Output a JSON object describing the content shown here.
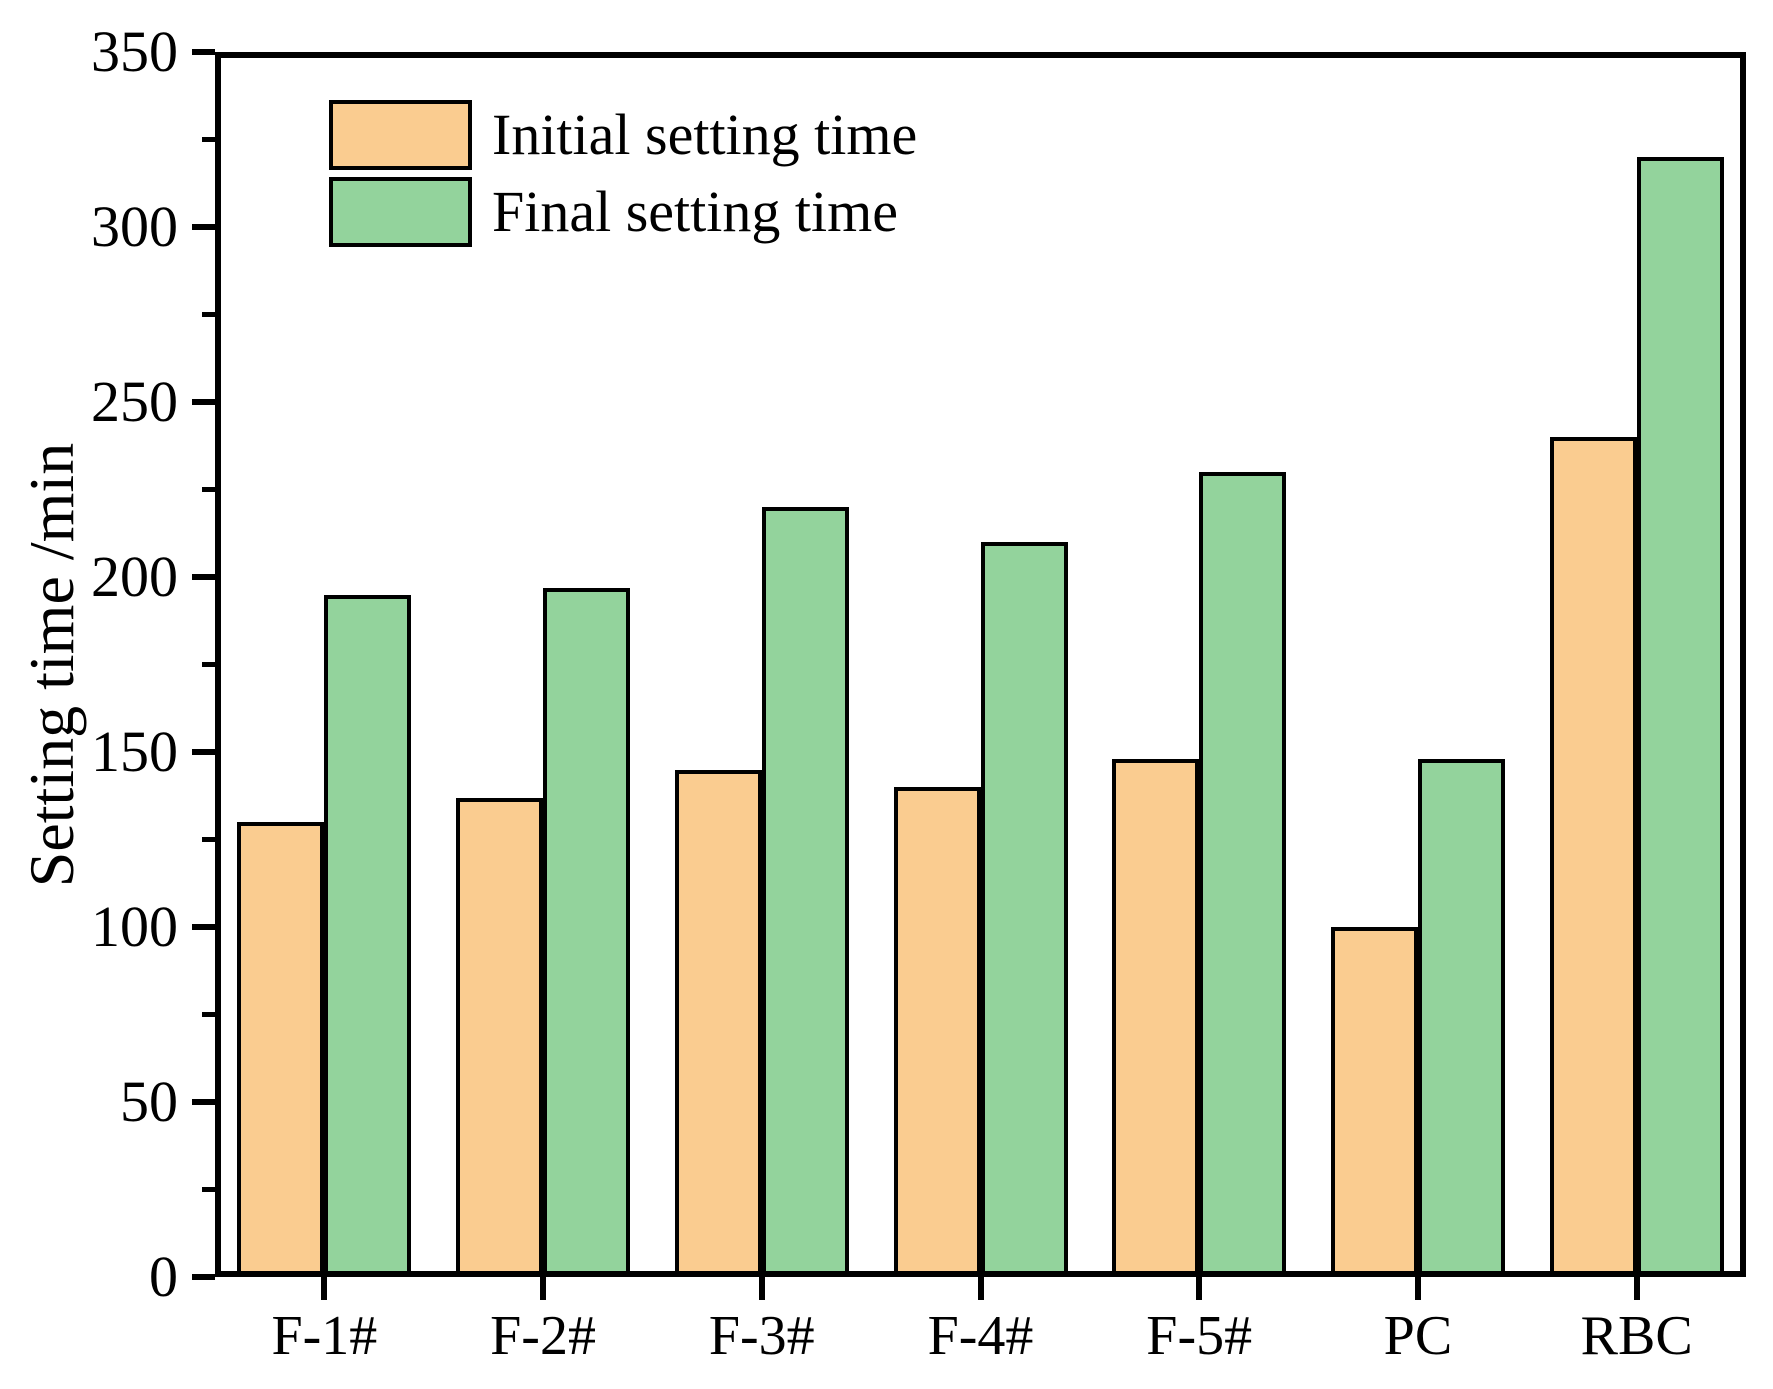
{
  "figure": {
    "background": "#FFFFFF",
    "axis_color": "#000000"
  },
  "chart_data": {
    "type": "bar",
    "title": "",
    "xlabel": "",
    "ylabel": "Setting time /min",
    "ylim": [
      0,
      350
    ],
    "ytick_step": 50,
    "yminor_tick_step": 25,
    "ytick_labels": [
      "0",
      "50",
      "100",
      "150",
      "200",
      "250",
      "300",
      "350"
    ],
    "categories": [
      "F-1#",
      "F-2#",
      "F-3#",
      "F-4#",
      "F-5#",
      "PC",
      "RBC"
    ],
    "series": [
      {
        "name": "Initial setting time",
        "color": "#FACC90",
        "values": [
          130,
          137,
          145,
          140,
          148,
          100,
          240
        ]
      },
      {
        "name": "Final setting time",
        "color": "#93D39C",
        "values": [
          195,
          197,
          220,
          210,
          230,
          148,
          320
        ]
      }
    ],
    "grid": false,
    "legend_position": "top-left-inside",
    "bar_outline_color": "#000000"
  }
}
